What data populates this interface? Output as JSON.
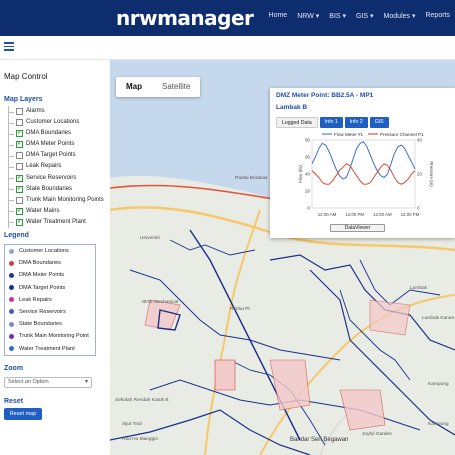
{
  "header": {
    "brand": "nrwmanager",
    "nav": [
      "Home",
      "NRW ▾",
      "BIS ▾",
      "GIS ▾",
      "Modules ▾",
      "Reports"
    ]
  },
  "sidebar": {
    "title": "Map Control",
    "layers_heading": "Map Layers",
    "layers": [
      {
        "label": "Alarms",
        "checked": false
      },
      {
        "label": "Customer Locations",
        "checked": false
      },
      {
        "label": "DMA Boundaries",
        "checked": true
      },
      {
        "label": "DMA Meter Points",
        "checked": true
      },
      {
        "label": "DMA Target Points",
        "checked": false
      },
      {
        "label": "Leak Repairs",
        "checked": false
      },
      {
        "label": "Service Reservoirs",
        "checked": true
      },
      {
        "label": "State Boundaries",
        "checked": true
      },
      {
        "label": "Trunk Main Monitoring Points",
        "checked": false
      },
      {
        "label": "Water Mains",
        "checked": true
      },
      {
        "label": "Water Treatment Plant",
        "checked": true
      }
    ],
    "legend_heading": "Legend",
    "legend": [
      {
        "label": "Customer Locations",
        "color": "#8fa4c8"
      },
      {
        "label": "DMA Boundaries",
        "color": "#d04040"
      },
      {
        "label": "DMA Meter Points",
        "color": "#1a3a9a"
      },
      {
        "label": "DMA Target Points",
        "color": "#1a2f8a"
      },
      {
        "label": "Leak Repairs",
        "color": "#cc33aa"
      },
      {
        "label": "Service Reservoirs",
        "color": "#3f5fb0"
      },
      {
        "label": "State Boundaries",
        "color": "#7d8fb8"
      },
      {
        "label": "Trunk Main Monitoring Point",
        "color": "#7a2fa0"
      },
      {
        "label": "Water Treatment Plant",
        "color": "#2a6fd0"
      }
    ],
    "zoom_heading": "Zoom",
    "zoom_select": "Select an Option",
    "reset_heading": "Reset",
    "reset_button": "Reset map"
  },
  "map": {
    "type_map": "Map",
    "type_satellite": "Satellite",
    "labels": [
      "Pantai Berakas",
      "IBTE Mechanical",
      "Rimba Pt",
      "Sekolah Rendah Katok B",
      "Sijut Trail",
      "Hua Ho Manggis",
      "Bandar Seri Begawan",
      "Joyful Garden",
      "Kampong",
      "Lambak Kanan",
      "Lambak",
      "Kampung",
      "Universiti"
    ]
  },
  "popup": {
    "title": "DMZ Meter Point: BB2.5A - MP1",
    "subtitle": "Lambak B",
    "tabs": [
      "Logged Data",
      "Info 1",
      "Info 2",
      "GIS"
    ],
    "dataviewer_button": "DataViewer"
  },
  "chart_data": {
    "type": "line",
    "legend": [
      "Flow Meter #1",
      "Pressure Channel P1"
    ],
    "ylabel_left": "Flow (l/s)",
    "ylabel_right": "Pressure (m)",
    "yticks_left": [
      "0",
      "20",
      "40",
      "60",
      "80"
    ],
    "yticks_right": [
      "0",
      "20",
      "40"
    ],
    "ylim_left": [
      0,
      80
    ],
    "ylim_right": [
      0,
      40
    ],
    "xticks": [
      "12:00 AM",
      "12:00 PM",
      "12:00 AM",
      "12:00 PM"
    ],
    "series": [
      {
        "name": "Flow Meter #1",
        "axis": "left",
        "color": "#2a62c9",
        "values": [
          52,
          60,
          70,
          76,
          74,
          66,
          56,
          46,
          38,
          34,
          36,
          46,
          58,
          70,
          76,
          78,
          72,
          62,
          52,
          44,
          38,
          36,
          40,
          52,
          64,
          72,
          74,
          70,
          62,
          54,
          46
        ]
      },
      {
        "name": "Pressure Channel P1",
        "axis": "right",
        "color": "#d9391f",
        "values": [
          22,
          20,
          18,
          15,
          14,
          14,
          16,
          19,
          22,
          24,
          26,
          25,
          22,
          19,
          16,
          14,
          14,
          15,
          18,
          21,
          24,
          26,
          25,
          22,
          18,
          15,
          14,
          15,
          17,
          20,
          22
        ]
      }
    ]
  }
}
